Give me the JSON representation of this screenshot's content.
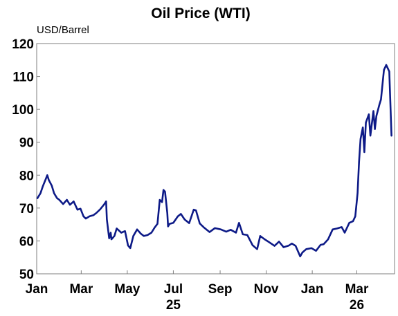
{
  "chart_data": {
    "type": "line",
    "title": "Oil Price (WTI)",
    "ylabel": "USD/Barrel",
    "ylim": [
      50,
      120
    ],
    "yticks": [
      50,
      60,
      70,
      80,
      90,
      100,
      110,
      120
    ],
    "x_tick_labels": [
      "Jan",
      "Mar",
      "May",
      "Jul",
      "Sep",
      "Nov",
      "Jan",
      "Mar"
    ],
    "x_year_labels": [
      {
        "under": "Jul",
        "label": "25"
      },
      {
        "under": "Mar",
        "label": "26"
      }
    ],
    "grid": false,
    "legend": "none",
    "color": "#0d1a87",
    "series": [
      {
        "x": [
          "2025-01-02",
          "2025-01-06",
          "2025-01-09",
          "2025-01-13",
          "2025-01-15",
          "2025-01-17",
          "2025-01-21",
          "2025-01-24",
          "2025-01-28",
          "2025-01-31",
          "2025-02-05",
          "2025-02-10",
          "2025-02-14",
          "2025-02-19",
          "2025-02-24",
          "2025-02-28",
          "2025-03-04",
          "2025-03-07",
          "2025-03-12",
          "2025-03-17",
          "2025-03-21",
          "2025-03-26",
          "2025-03-31",
          "2025-04-03",
          "2025-04-04",
          "2025-04-07",
          "2025-04-09",
          "2025-04-10",
          "2025-04-14",
          "2025-04-17",
          "2025-04-23",
          "2025-04-28",
          "2025-05-02",
          "2025-05-05",
          "2025-05-09",
          "2025-05-14",
          "2025-05-19",
          "2025-05-23",
          "2025-05-28",
          "2025-06-02",
          "2025-06-06",
          "2025-06-10",
          "2025-06-13",
          "2025-06-16",
          "2025-06-18",
          "2025-06-20",
          "2025-06-23",
          "2025-06-24",
          "2025-06-26",
          "2025-07-01",
          "2025-07-07",
          "2025-07-11",
          "2025-07-16",
          "2025-07-22",
          "2025-07-28",
          "2025-07-31",
          "2025-08-05",
          "2025-08-11",
          "2025-08-18",
          "2025-08-25",
          "2025-09-02",
          "2025-09-09",
          "2025-09-15",
          "2025-09-22",
          "2025-09-26",
          "2025-10-01",
          "2025-10-07",
          "2025-10-14",
          "2025-10-20",
          "2025-10-24",
          "2025-10-30",
          "2025-11-05",
          "2025-11-12",
          "2025-11-18",
          "2025-11-24",
          "2025-12-01",
          "2025-12-05",
          "2025-12-10",
          "2025-12-16",
          "2025-12-19",
          "2025-12-24",
          "2025-12-31",
          "2026-01-06",
          "2026-01-12",
          "2026-01-16",
          "2026-01-22",
          "2026-01-28",
          "2026-02-03",
          "2026-02-09",
          "2026-02-13",
          "2026-02-19",
          "2026-02-24",
          "2026-02-27",
          "2026-03-02",
          "2026-03-04",
          "2026-03-06",
          "2026-03-09",
          "2026-03-11",
          "2026-03-13",
          "2026-03-17",
          "2026-03-19",
          "2026-03-23",
          "2026-03-25",
          "2026-03-27",
          "2026-03-31",
          "2026-04-02",
          "2026-04-06",
          "2026-04-09",
          "2026-04-13",
          "2026-04-16"
        ],
        "values": [
          73.0,
          74.5,
          76.5,
          78.8,
          80.0,
          78.5,
          76.8,
          74.5,
          73.0,
          72.5,
          71.2,
          72.5,
          71.0,
          72.0,
          69.5,
          69.8,
          67.5,
          66.8,
          67.5,
          67.8,
          68.5,
          69.6,
          71.0,
          72.0,
          66.5,
          60.8,
          62.5,
          60.5,
          61.5,
          63.8,
          62.5,
          63.0,
          58.6,
          57.8,
          61.5,
          63.5,
          62.2,
          61.5,
          61.8,
          62.5,
          64.0,
          65.2,
          72.5,
          71.8,
          75.5,
          75.0,
          68.5,
          64.4,
          65.2,
          65.5,
          67.5,
          68.2,
          66.5,
          65.4,
          69.5,
          69.3,
          65.3,
          64.0,
          62.7,
          63.9,
          63.5,
          62.8,
          63.4,
          62.5,
          65.5,
          62.0,
          61.8,
          58.7,
          57.5,
          61.5,
          60.5,
          59.6,
          58.5,
          59.8,
          58.1,
          58.6,
          59.2,
          58.5,
          55.3,
          56.5,
          57.5,
          57.8,
          57.0,
          58.8,
          59.0,
          60.5,
          63.5,
          63.8,
          64.2,
          62.5,
          65.5,
          66.0,
          67.5,
          74.5,
          84.0,
          91.0,
          94.5,
          87.0,
          96.0,
          98.5,
          92.0,
          99.5,
          94.0,
          98.0,
          101.5,
          103.0,
          112.0,
          113.5,
          111.5,
          92.0
        ]
      }
    ]
  }
}
